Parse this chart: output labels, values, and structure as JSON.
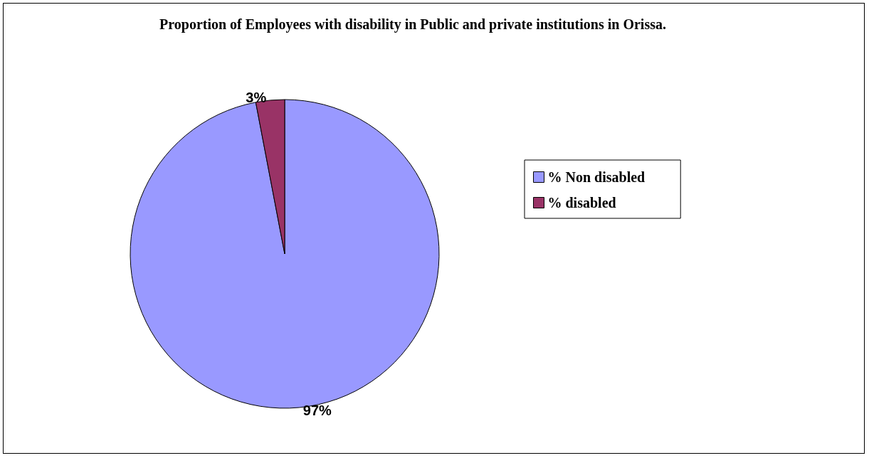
{
  "chart_data": {
    "type": "pie",
    "title": "Proportion of Employees with disability in Public and private institutions in Orissa.",
    "categories": [
      "% Non disabled",
      "% disabled"
    ],
    "values": [
      97,
      3
    ],
    "colors": [
      "#9999ff",
      "#993366"
    ],
    "value_labels": [
      "97%",
      "3%"
    ],
    "legend": "right"
  }
}
